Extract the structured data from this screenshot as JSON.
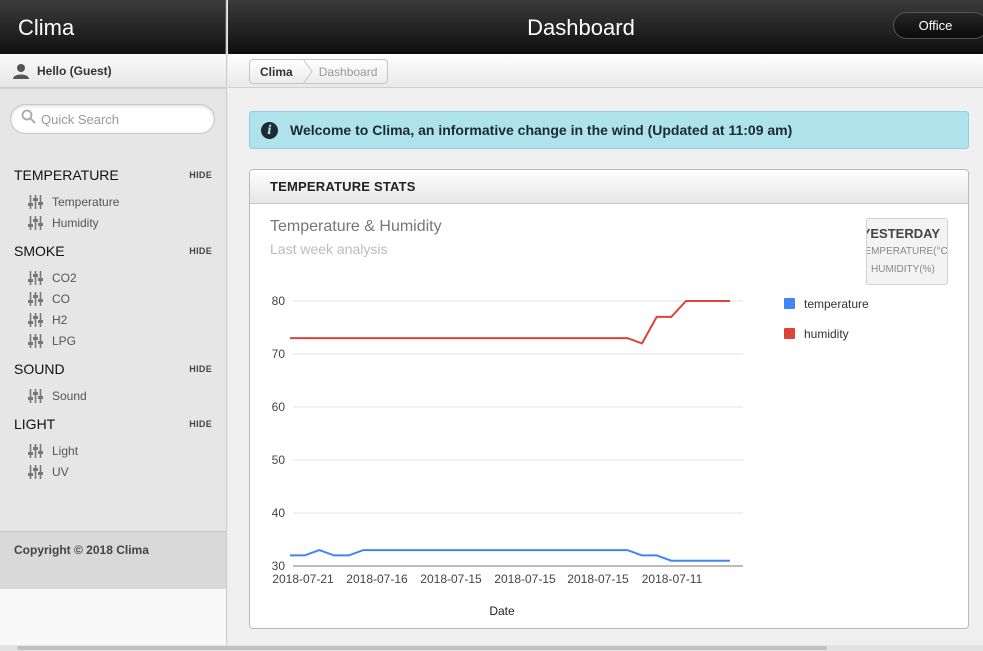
{
  "app": {
    "name": "Clima"
  },
  "header": {
    "title": "Dashboard",
    "location_button": "Office"
  },
  "user": {
    "greeting": "Hello (Guest)"
  },
  "search": {
    "placeholder": "Quick Search"
  },
  "sidebar": {
    "hide_label": "HIDE",
    "sections": [
      {
        "title": "TEMPERATURE",
        "items": [
          "Temperature",
          "Humidity"
        ]
      },
      {
        "title": "SMOKE",
        "items": [
          "CO2",
          "CO",
          "H2",
          "LPG"
        ]
      },
      {
        "title": "SOUND",
        "items": [
          "Sound"
        ]
      },
      {
        "title": "LIGHT",
        "items": [
          "Light",
          "UV"
        ]
      }
    ],
    "footer": "Copyright © 2018 Clima"
  },
  "breadcrumb": [
    "Clima",
    "Dashboard"
  ],
  "alert": {
    "icon": "info-icon",
    "text": "Welcome to Clima, an informative change in the wind (Updated at 11:09 am)"
  },
  "panel": {
    "title": "TEMPERATURE STATS",
    "yesterday": {
      "title": "YESTERDAY",
      "line1": "TEMPERATURE(°C)",
      "line2": "HUMIDITY(%)"
    }
  },
  "colors": {
    "temperature": "#4285f4",
    "humidity": "#db4437",
    "alert_bg": "#aee3ec"
  },
  "chart_data": {
    "type": "line",
    "title": "Temperature & Humidity",
    "subtitle": "Last week analysis",
    "xlabel": "Date",
    "ylabel": "",
    "ylim": [
      30,
      80
    ],
    "yticks": [
      30,
      40,
      50,
      60,
      70,
      80
    ],
    "xtick_labels": [
      "2018-07-21",
      "2018-07-16",
      "2018-07-15",
      "2018-07-15",
      "2018-07-15",
      "2018-07-11"
    ],
    "legend_position": "right",
    "series": [
      {
        "name": "temperature",
        "color": "#4285f4",
        "values": [
          32,
          32,
          33,
          32,
          32,
          33,
          33,
          33,
          33,
          33,
          33,
          33,
          33,
          33,
          33,
          33,
          33,
          33,
          33,
          33,
          33,
          33,
          33,
          33,
          32,
          32,
          31,
          31,
          31,
          31,
          31
        ]
      },
      {
        "name": "humidity",
        "color": "#db4437",
        "values": [
          73,
          73,
          73,
          73,
          73,
          73,
          73,
          73,
          73,
          73,
          73,
          73,
          73,
          73,
          73,
          73,
          73,
          73,
          73,
          73,
          73,
          73,
          73,
          73,
          72,
          77,
          77,
          80,
          80,
          80,
          80
        ]
      }
    ]
  }
}
